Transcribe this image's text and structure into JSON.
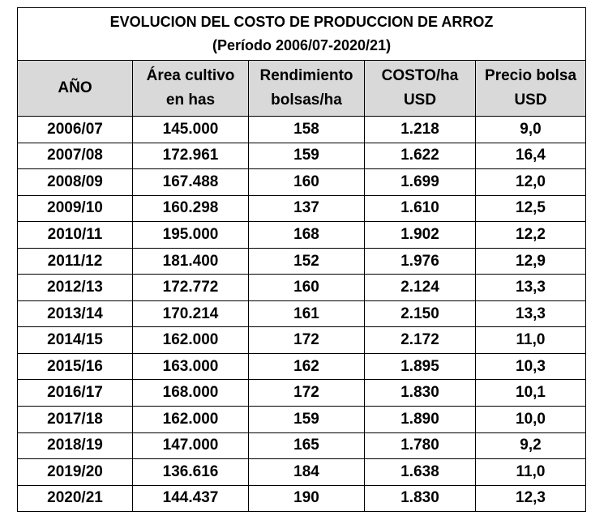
{
  "chart_data": {
    "type": "table",
    "title": "EVOLUCION DEL COSTO DE PRODUCCION DE ARROZ",
    "subtitle": "(Período 2006/07-2020/21)",
    "columns": [
      [
        "AÑO"
      ],
      [
        "Área cultivo",
        "en has"
      ],
      [
        "Rendimiento",
        "bolsas/ha"
      ],
      [
        "COSTO/ha",
        "USD"
      ],
      [
        "Precio bolsa",
        "USD"
      ]
    ],
    "rows": [
      [
        "2006/07",
        "145.000",
        "158",
        "1.218",
        "9,0"
      ],
      [
        "2007/08",
        "172.961",
        "159",
        "1.622",
        "16,4"
      ],
      [
        "2008/09",
        "167.488",
        "160",
        "1.699",
        "12,0"
      ],
      [
        "2009/10",
        "160.298",
        "137",
        "1.610",
        "12,5"
      ],
      [
        "2010/11",
        "195.000",
        "168",
        "1.902",
        "12,2"
      ],
      [
        "2011/12",
        "181.400",
        "152",
        "1.976",
        "12,9"
      ],
      [
        "2012/13",
        "172.772",
        "160",
        "2.124",
        "13,3"
      ],
      [
        "2013/14",
        "170.214",
        "161",
        "2.150",
        "13,3"
      ],
      [
        "2014/15",
        "162.000",
        "172",
        "2.172",
        "11,0"
      ],
      [
        "2015/16",
        "163.000",
        "162",
        "1.895",
        "10,3"
      ],
      [
        "2016/17",
        "168.000",
        "172",
        "1.830",
        "10,1"
      ],
      [
        "2017/18",
        "162.000",
        "159",
        "1.890",
        "10,0"
      ],
      [
        "2018/19",
        "147.000",
        "165",
        "1.780",
        "9,2"
      ],
      [
        "2019/20",
        "136.616",
        "184",
        "1.638",
        "11,0"
      ],
      [
        "2020/21",
        "144.437",
        "190",
        "1.830",
        "12,3"
      ]
    ],
    "header_color": "#d9d9d9"
  }
}
